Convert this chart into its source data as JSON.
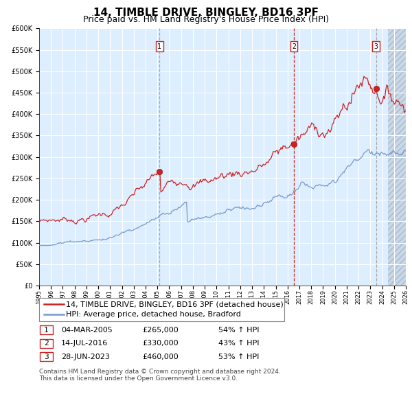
{
  "title": "14, TIMBLE DRIVE, BINGLEY, BD16 3PF",
  "subtitle": "Price paid vs. HM Land Registry's House Price Index (HPI)",
  "legend_line1": "14, TIMBLE DRIVE, BINGLEY, BD16 3PF (detached house)",
  "legend_line2": "HPI: Average price, detached house, Bradford",
  "footer1": "Contains HM Land Registry data © Crown copyright and database right 2024.",
  "footer2": "This data is licensed under the Open Government Licence v3.0.",
  "transactions": [
    {
      "num": 1,
      "date": "04-MAR-2005",
      "price": 265000,
      "year": 2005.17,
      "hpi_pct": "54% ↑ HPI"
    },
    {
      "num": 2,
      "date": "14-JUL-2016",
      "price": 330000,
      "year": 2016.54,
      "hpi_pct": "43% ↑ HPI"
    },
    {
      "num": 3,
      "date": "28-JUN-2023",
      "price": 460000,
      "year": 2023.49,
      "hpi_pct": "53% ↑ HPI"
    }
  ],
  "xmin": 1995,
  "xmax": 2026,
  "ymin": 0,
  "ymax": 600000,
  "yticks": [
    0,
    50000,
    100000,
    150000,
    200000,
    250000,
    300000,
    350000,
    400000,
    450000,
    500000,
    550000,
    600000
  ],
  "bg_color": "#ddeeff",
  "grid_color": "#ffffff",
  "line1_color": "#cc2222",
  "line2_color": "#7799cc",
  "dot_color": "#cc2222",
  "title_fontsize": 11,
  "subtitle_fontsize": 9,
  "tick_fontsize": 7,
  "legend_fontsize": 8,
  "footer_fontsize": 6.5
}
